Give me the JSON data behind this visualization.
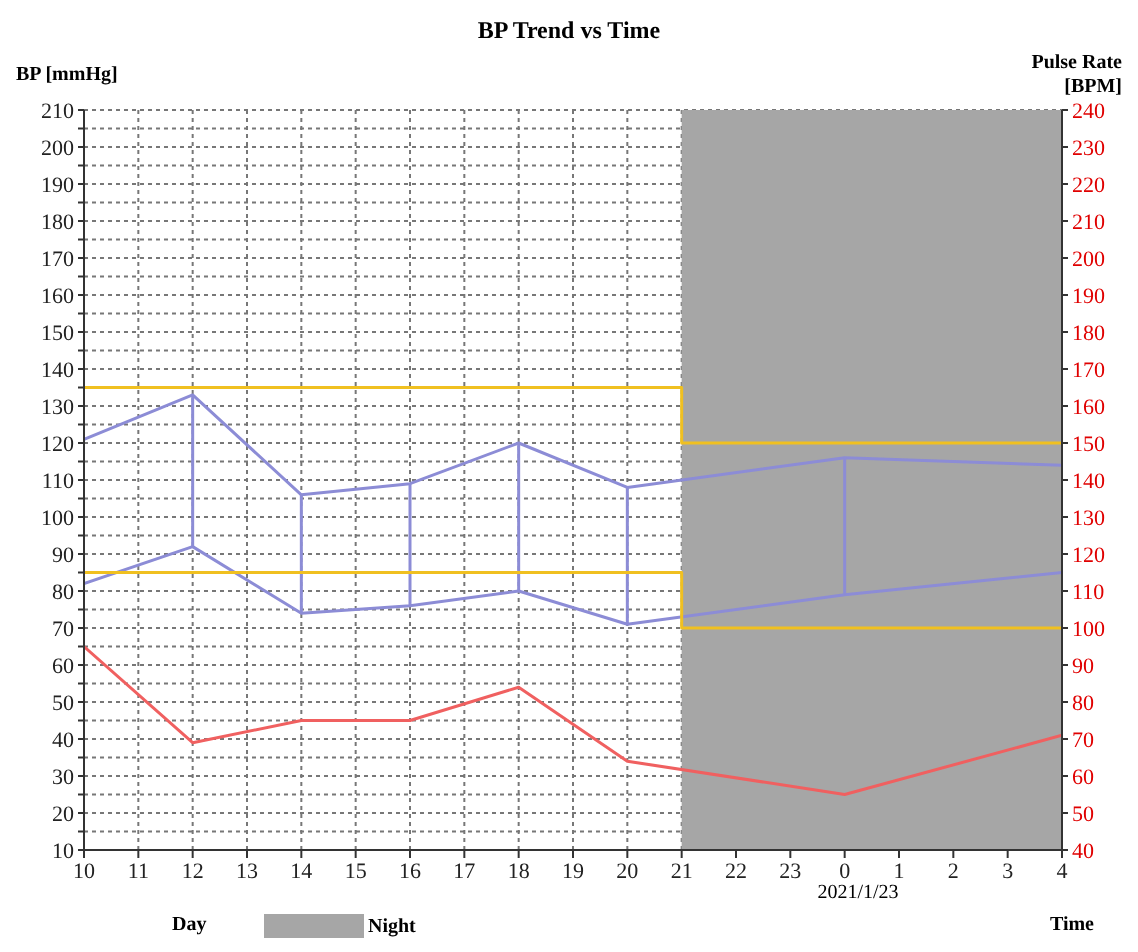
{
  "chart_data": {
    "type": "line",
    "title": "BP Trend vs Time",
    "xlabel": "Time",
    "ylabel": "BP [mmHg]",
    "y2label": "Pulse Rate [BPM]",
    "x": [
      "2021-01-22T10:00",
      "2021-01-22T12:00",
      "2021-01-22T14:00",
      "2021-01-22T16:00",
      "2021-01-22T18:00",
      "2021-01-22T20:00",
      "2021-01-23T00:00",
      "2021-01-23T04:00"
    ],
    "xlim": [
      "2021-01-22T10:00",
      "2021-01-23T04:00"
    ],
    "xticks": [
      {
        "value": "2021-01-22T10:00",
        "label": "10"
      },
      {
        "value": "2021-01-22T11:00",
        "label": "11"
      },
      {
        "value": "2021-01-22T12:00",
        "label": "12"
      },
      {
        "value": "2021-01-22T13:00",
        "label": "13"
      },
      {
        "value": "2021-01-22T14:00",
        "label": "14"
      },
      {
        "value": "2021-01-22T15:00",
        "label": "15"
      },
      {
        "value": "2021-01-22T16:00",
        "label": "16"
      },
      {
        "value": "2021-01-22T17:00",
        "label": "17"
      },
      {
        "value": "2021-01-22T18:00",
        "label": "18"
      },
      {
        "value": "2021-01-22T19:00",
        "label": "19"
      },
      {
        "value": "2021-01-22T20:00",
        "label": "20"
      },
      {
        "value": "2021-01-22T21:00",
        "label": "21"
      },
      {
        "value": "2021-01-22T22:00",
        "label": "22"
      },
      {
        "value": "2021-01-22T23:00",
        "label": "23"
      },
      {
        "value": "2021-01-23T00:00",
        "label": "0"
      },
      {
        "value": "2021-01-23T01:00",
        "label": "1"
      },
      {
        "value": "2021-01-23T02:00",
        "label": "2"
      },
      {
        "value": "2021-01-23T03:00",
        "label": "3"
      },
      {
        "value": "2021-01-23T04:00",
        "label": "4"
      }
    ],
    "ylim": [
      10,
      210
    ],
    "yticks": [
      10,
      {
        "value": 15,
        "label": null
      },
      20,
      {
        "value": 25,
        "label": null
      },
      30,
      {
        "value": 35,
        "label": null
      },
      40,
      {
        "value": 45,
        "label": null
      },
      50,
      {
        "value": 55,
        "label": null
      },
      60,
      {
        "value": 65,
        "label": null
      },
      70,
      {
        "value": 75,
        "label": null
      },
      80,
      {
        "value": 85,
        "label": null
      },
      90,
      {
        "value": 95,
        "label": null
      },
      100,
      {
        "value": 105,
        "label": null
      },
      110,
      {
        "value": 115,
        "label": null
      },
      120,
      {
        "value": 125,
        "label": null
      },
      130,
      {
        "value": 135,
        "label": null
      },
      140,
      {
        "value": 145,
        "label": null
      },
      150,
      {
        "value": 155,
        "label": null
      },
      160,
      {
        "value": 165,
        "label": null
      },
      170,
      {
        "value": 175,
        "label": null
      },
      180,
      {
        "value": 185,
        "label": null
      },
      190,
      {
        "value": 195,
        "label": null
      },
      200,
      {
        "value": 205,
        "label": null
      },
      210
    ],
    "y2lim": [
      40,
      240
    ],
    "y2ticks": [
      40,
      50,
      60,
      70,
      80,
      90,
      100,
      110,
      120,
      130,
      140,
      150,
      160,
      170,
      180,
      190,
      200,
      210,
      220,
      230,
      240
    ],
    "series": [
      {
        "color": "#8c8cd6",
        "values": [
          121,
          133,
          106,
          109,
          120,
          108,
          116,
          114
        ]
      },
      {
        "color": "#8c8cd6",
        "values": [
          82,
          92,
          74,
          76,
          80,
          71,
          79,
          85
        ]
      },
      {
        "color": "#8c8cd6",
        "x": [
          "2021-01-22T12:00",
          "2021-01-22T12:00"
        ],
        "values": [
          133,
          92
        ]
      },
      {
        "color": "#8c8cd6",
        "x": [
          "2021-01-22T14:00",
          "2021-01-22T14:00"
        ],
        "values": [
          106,
          74
        ]
      },
      {
        "color": "#8c8cd6",
        "x": [
          "2021-01-22T16:00",
          "2021-01-22T16:00"
        ],
        "values": [
          109,
          76
        ]
      },
      {
        "color": "#8c8cd6",
        "x": [
          "2021-01-22T18:00",
          "2021-01-22T18:00"
        ],
        "values": [
          120,
          80
        ]
      },
      {
        "color": "#8c8cd6",
        "x": [
          "2021-01-22T20:00",
          "2021-01-22T20:00"
        ],
        "values": [
          108,
          71
        ]
      },
      {
        "color": "#8c8cd6",
        "x": [
          "2021-01-23T00:00",
          "2021-01-23T00:00"
        ],
        "values": [
          116,
          79
        ]
      },
      {
        "color": "#f06060",
        "axis": "y2",
        "values": [
          95,
          69,
          75,
          75,
          84,
          64,
          55,
          71
        ]
      },
      {
        "color": "#f0c020",
        "x": [
          "2021-01-22T10:00",
          "2021-01-22T21:00",
          "2021-01-22T21:00",
          "2021-01-23T04:00"
        ],
        "values": [
          135,
          135,
          120,
          120
        ]
      },
      {
        "color": "#f0c020",
        "x": [
          "2021-01-22T10:00",
          "2021-01-22T21:00",
          "2021-01-22T21:00",
          "2021-01-23T04:00"
        ],
        "values": [
          85,
          85,
          70,
          70
        ]
      }
    ],
    "bands": [
      {
        "axis": "x",
        "from": "2021-01-22T21:00",
        "to": "2021-01-23T04:00",
        "label": "Night",
        "color": "#a6a6a6"
      }
    ],
    "annotations": [
      "2021/1/23",
      "Day"
    ],
    "grid": true,
    "legend": "bottom",
    "marker": "none",
    "line_style": "solid"
  }
}
